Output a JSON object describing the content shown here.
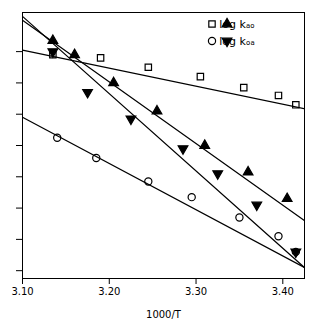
{
  "chart_data": {
    "type": "scatter",
    "xlabel": "1000/T",
    "xlim": [
      3.1,
      3.425
    ],
    "ylim": [
      -2.25,
      -0.55
    ],
    "xticks": [
      3.1,
      3.2,
      3.3,
      3.4
    ],
    "yticks": [
      -0.8,
      -1.0,
      -1.2,
      -1.4,
      -1.6,
      -1.8,
      -2.0,
      -2.2
    ],
    "tick_labels": "x",
    "legend": "upper right",
    "series": [
      {
        "type": "line",
        "color": "#000000",
        "x": [
          3.1,
          3.425
        ],
        "values": [
          -0.79,
          -1.165
        ]
      },
      {
        "type": "line",
        "color": "#000000",
        "x": [
          3.1,
          3.425
        ],
        "values": [
          -0.6,
          -1.88
        ]
      },
      {
        "type": "line",
        "color": "#000000",
        "x": [
          3.1,
          3.425
        ],
        "values": [
          -1.22,
          -2.18
        ]
      },
      {
        "type": "line",
        "color": "#000000",
        "x": [
          3.1,
          3.425
        ],
        "values": [
          -0.575,
          -2.18
        ]
      },
      {
        "type": "scatter",
        "name": "log kₐₒ",
        "marker": "square-open",
        "color": "#000000",
        "x": [
          3.135,
          3.19,
          3.245,
          3.305,
          3.355,
          3.395,
          3.415
        ],
        "values": [
          -0.82,
          -0.84,
          -0.9,
          -0.96,
          -1.03,
          -1.08,
          -1.14
        ]
      },
      {
        "type": "scatter",
        "name": "log kₐₒ",
        "marker": "triangle",
        "color": "#000000",
        "x": [
          3.135,
          3.16,
          3.205,
          3.255,
          3.31,
          3.36,
          3.405
        ],
        "values": [
          -0.73,
          -0.82,
          -1.0,
          -1.18,
          -1.4,
          -1.57,
          -1.74
        ]
      },
      {
        "type": "scatter",
        "name": "log kₒₐ",
        "marker": "circle-open",
        "color": "#000000",
        "x": [
          3.14,
          3.185,
          3.245,
          3.295,
          3.35,
          3.395,
          3.415
        ],
        "values": [
          -1.35,
          -1.48,
          -1.63,
          -1.73,
          -1.86,
          -1.98,
          -2.08
        ]
      },
      {
        "type": "scatter",
        "name": "log kₒₐ",
        "marker": "triangle-down",
        "color": "#000000",
        "x": [
          3.135,
          3.175,
          3.225,
          3.285,
          3.325,
          3.37,
          3.415
        ],
        "values": [
          -0.8,
          -1.06,
          -1.23,
          -1.42,
          -1.58,
          -1.78,
          -2.08
        ]
      }
    ]
  }
}
